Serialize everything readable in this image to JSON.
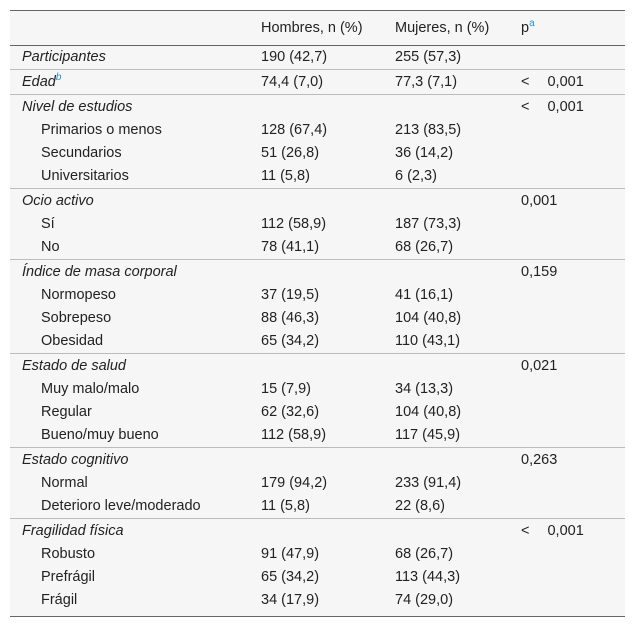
{
  "table": {
    "header": {
      "columns": [
        "Hombres, n (%)",
        "Mujeres, n (%)"
      ],
      "p": "p",
      "p_note": "a"
    },
    "rows": [
      {
        "label": "Participantes",
        "level": 0,
        "hombres": "190 (42,7)",
        "mujeres": "255 (57,3)"
      },
      {
        "label": "Edad",
        "note": "b",
        "level": 0,
        "hombres": "74,4 (7,0)",
        "mujeres": "77,3 (7,1)",
        "p": "< 0,001"
      },
      {
        "label": "Nivel de estudios",
        "level": 0,
        "p": "< 0,001"
      },
      {
        "label": "Primarios o menos",
        "level": 1,
        "hombres": "128 (67,4)",
        "mujeres": "213 (83,5)"
      },
      {
        "label": "Secundarios",
        "level": 1,
        "hombres": "51 (26,8)",
        "mujeres": "36 (14,2)"
      },
      {
        "label": "Universitarios",
        "level": 1,
        "hombres": "11 (5,8)",
        "mujeres": "6 (2,3)"
      },
      {
        "label": "Ocio activo",
        "level": 0,
        "p": "0,001"
      },
      {
        "label": "Sí",
        "level": 1,
        "hombres": "112 (58,9)",
        "mujeres": "187 (73,3)"
      },
      {
        "label": "No",
        "level": 1,
        "hombres": "78 (41,1)",
        "mujeres": "68 (26,7)"
      },
      {
        "label": "Índice de masa corporal",
        "level": 0,
        "p": "0,159"
      },
      {
        "label": "Normopeso",
        "level": 1,
        "hombres": "37 (19,5)",
        "mujeres": "41 (16,1)"
      },
      {
        "label": "Sobrepeso",
        "level": 1,
        "hombres": "88 (46,3)",
        "mujeres": "104 (40,8)"
      },
      {
        "label": "Obesidad",
        "level": 1,
        "hombres": "65 (34,2)",
        "mujeres": "110 (43,1)"
      },
      {
        "label": "Estado de salud",
        "level": 0,
        "p": "0,021"
      },
      {
        "label": "Muy malo/malo",
        "level": 1,
        "hombres": "15 (7,9)",
        "mujeres": "34 (13,3)"
      },
      {
        "label": "Regular",
        "level": 1,
        "hombres": "62 (32,6)",
        "mujeres": "104 (40,8)"
      },
      {
        "label": "Bueno/muy bueno",
        "level": 1,
        "hombres": "112 (58,9)",
        "mujeres": "117 (45,9)"
      },
      {
        "label": "Estado cognitivo",
        "level": 0,
        "p": "0,263"
      },
      {
        "label": "Normal",
        "level": 1,
        "hombres": "179 (94,2)",
        "mujeres": "233 (91,4)"
      },
      {
        "label": "Deterioro leve/moderado",
        "level": 1,
        "hombres": "11 (5,8)",
        "mujeres": "22 (8,6)"
      },
      {
        "label": "Fragilidad física",
        "level": 0,
        "p": "< 0,001"
      },
      {
        "label": "Robusto",
        "level": 1,
        "hombres": "91 (47,9)",
        "mujeres": "68 (26,7)"
      },
      {
        "label": "Prefrágil",
        "level": 1,
        "hombres": "65 (34,2)",
        "mujeres": "113 (44,3)"
      },
      {
        "label": "Frágil",
        "level": 1,
        "hombres": "34 (17,9)",
        "mujeres": "74 (29,0)"
      }
    ]
  }
}
